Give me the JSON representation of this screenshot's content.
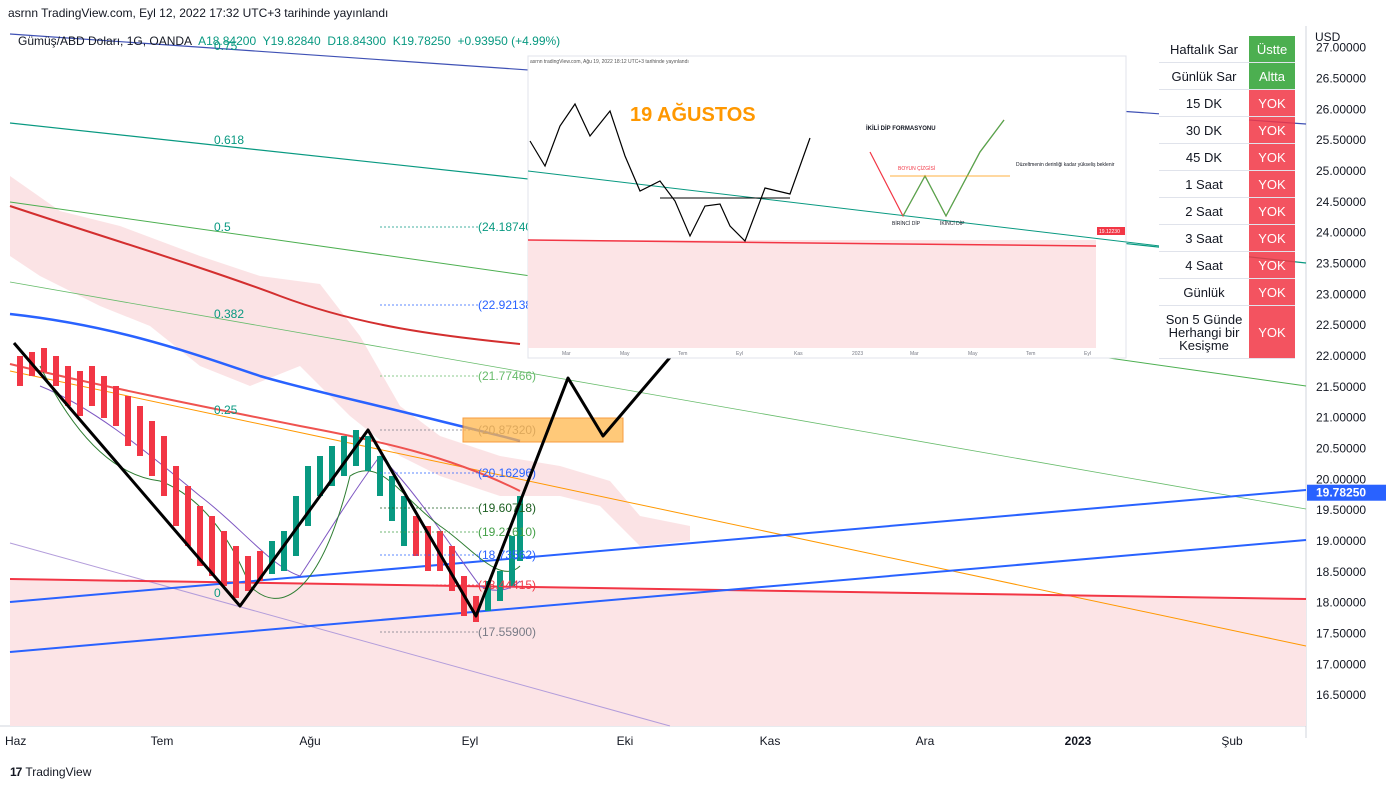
{
  "header": {
    "title": "asrnn TradingView.com, Eyl 12, 2022 17:32 UTC+3 tarihinde yayınlandı"
  },
  "stats": {
    "symbol": "Gümüş/ABD Doları, 1G, OANDA",
    "open": "A18.84200",
    "high": "Y19.82840",
    "low": "D18.84300",
    "close": "K19.78250",
    "change": "+0.93950 (+4.99%)"
  },
  "footer": {
    "logo": "17",
    "brand": "TradingView"
  },
  "chart_data": {
    "type": "line",
    "title": "",
    "ylabel": "USD",
    "ylim": [
      16.0,
      27.35
    ],
    "y_ticks": [
      "27.00000",
      "26.50000",
      "26.00000",
      "25.50000",
      "25.00000",
      "24.50000",
      "24.00000",
      "23.50000",
      "23.00000",
      "22.50000",
      "22.00000",
      "21.50000",
      "21.00000",
      "20.50000",
      "20.00000",
      "19.50000",
      "19.00000",
      "18.50000",
      "18.00000",
      "17.50000",
      "17.00000",
      "16.50000"
    ],
    "x_ticks": [
      "Haz",
      "Tem",
      "Ağu",
      "Eyl",
      "Eki",
      "Kas",
      "Ara",
      "2023",
      "Şub"
    ],
    "last_price": {
      "value": 19.7825,
      "label": "19.78250",
      "color": "#2962ff"
    },
    "fib_levels": [
      {
        "ratio": "0.75",
        "value": 27.0
      },
      {
        "ratio": "0.618",
        "value": 25.6
      },
      {
        "ratio": "0.5",
        "value": 24.2
      },
      {
        "ratio": "0.382",
        "value": 22.9
      },
      {
        "ratio": "0.25",
        "value": 21.05
      },
      {
        "ratio": "0",
        "value": 18.1
      }
    ],
    "price_labels": [
      {
        "text": "(24.18740)",
        "value": 24.1874,
        "color": "#089981"
      },
      {
        "text": "(22.92138)",
        "value": 22.92138,
        "color": "#2962ff"
      },
      {
        "text": "(21.77466)",
        "value": 21.77466,
        "color": "#66bb6a"
      },
      {
        "text": "(20.87320)",
        "value": 20.8732,
        "color": "#787b86"
      },
      {
        "text": "(20.16296)",
        "value": 20.16296,
        "color": "#2962ff"
      },
      {
        "text": "(19.60718)",
        "value": 19.60718,
        "color": "#1b5e20"
      },
      {
        "text": "(19.21610)",
        "value": 19.2161,
        "color": "#43a047"
      },
      {
        "text": "(18.73562)",
        "value": 18.73562,
        "color": "#2962ff"
      },
      {
        "text": "(18.44415)",
        "value": 18.44415,
        "color": "#f23645"
      },
      {
        "text": "(17.55900)",
        "value": 17.559,
        "color": "#787b86"
      }
    ],
    "series": [
      {
        "name": "",
        "color": "#000000",
        "points": [
          [
            0,
            22.3
          ],
          [
            1,
            18.0
          ],
          [
            2,
            20.9
          ],
          [
            3,
            17.8
          ],
          [
            4,
            21.7
          ],
          [
            5,
            20.8
          ],
          [
            6,
            24.0
          ]
        ]
      }
    ]
  },
  "inset": {
    "header": "asrnn tradingView.com, Ağu 19, 2022 18:12 UTC+3 tarihinde yayınlandı",
    "title": "19 AĞUSTOS",
    "pattern_title": "İKİLİ DİP FORMASYONU",
    "neckline": "BOYUN ÇİZGİSİ",
    "first_bottom": "BİRİNCİ DİP",
    "second_bottom": "İKİNCİ DİP",
    "note": "Düzeltmenin derinliği kadar yükseliş beklenir",
    "months": [
      "Mar",
      "May",
      "Tem",
      "Eyl",
      "Kas",
      "2023",
      "Mar",
      "May",
      "Tem",
      "Eyl"
    ],
    "last_label": "19.12230"
  },
  "signals": [
    {
      "label": "Haftalık Sar",
      "value": "Üstte",
      "color": "green"
    },
    {
      "label": "Günlük Sar",
      "value": "Altta",
      "color": "green"
    },
    {
      "label": "15 DK",
      "value": "YOK",
      "color": "red"
    },
    {
      "label": "30 DK",
      "value": "YOK",
      "color": "red"
    },
    {
      "label": "45 DK",
      "value": "YOK",
      "color": "red"
    },
    {
      "label": "1 Saat",
      "value": "YOK",
      "color": "red"
    },
    {
      "label": "2 Saat",
      "value": "YOK",
      "color": "red"
    },
    {
      "label": "3 Saat",
      "value": "YOK",
      "color": "red"
    },
    {
      "label": "4 Saat",
      "value": "YOK",
      "color": "red"
    },
    {
      "label": "Günlük",
      "value": "YOK",
      "color": "red"
    },
    {
      "label": "Son 5 Günde Herhangi bir Kesişme",
      "value": "YOK",
      "color": "red"
    }
  ]
}
